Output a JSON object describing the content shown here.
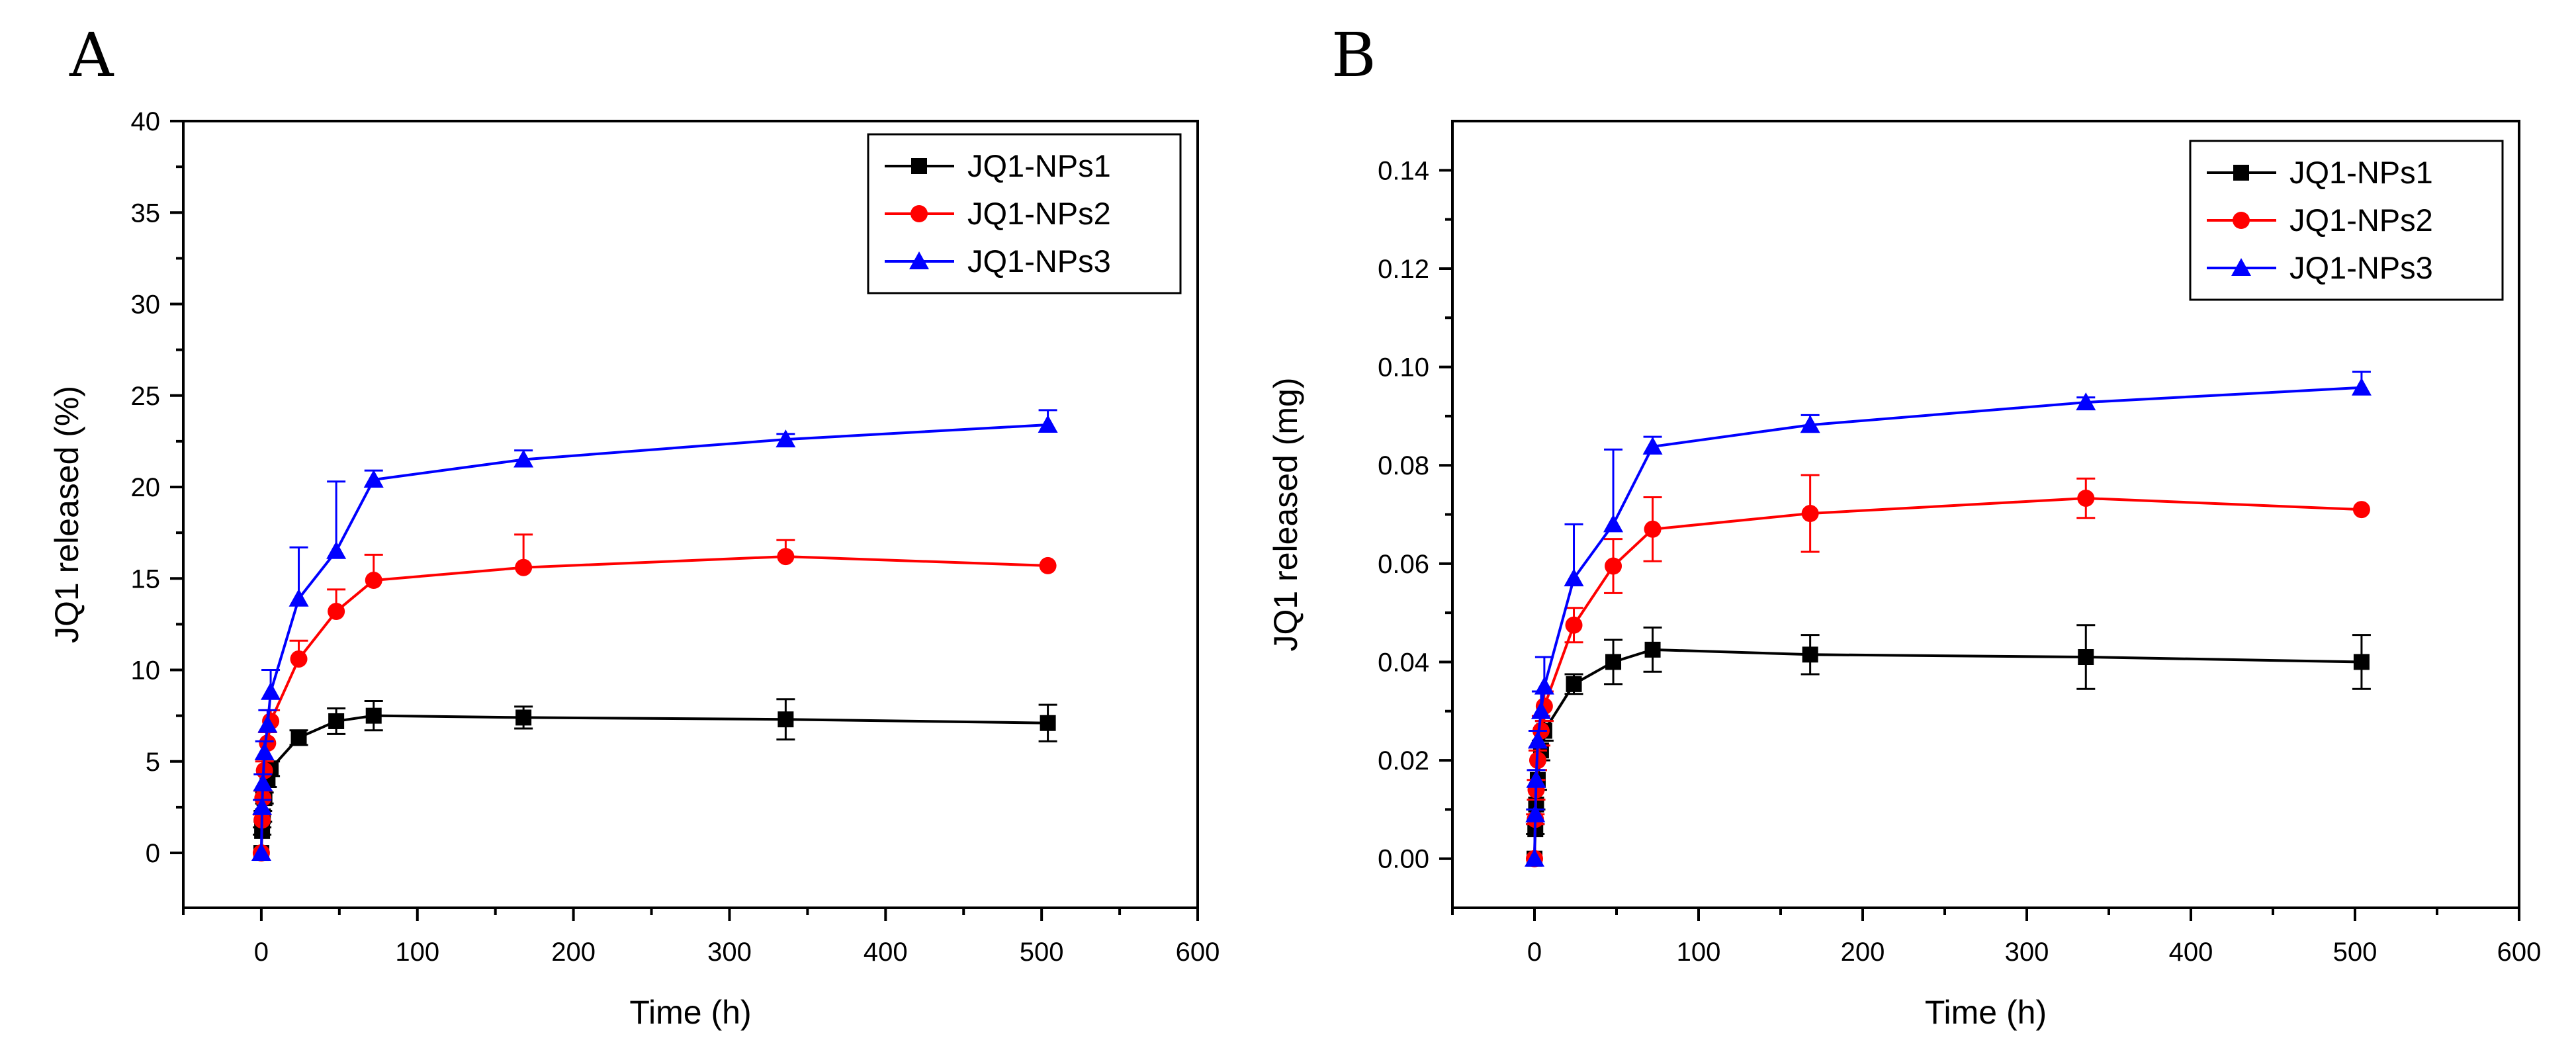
{
  "chart_data": [
    {
      "panel_label": "A",
      "type": "line",
      "xlabel": "Time (h)",
      "ylabel": "JQ1 released (%)",
      "xlim": [
        -50,
        600
      ],
      "ylim": [
        -3,
        40
      ],
      "xticks": [
        0,
        100,
        200,
        300,
        400,
        500,
        600
      ],
      "xtick_labels": [
        "0",
        "100",
        "200",
        "300",
        "400",
        "500",
        "600"
      ],
      "yticks": [
        0,
        5,
        10,
        15,
        20,
        25,
        30,
        35,
        40
      ],
      "ytick_labels": [
        "0",
        "5",
        "10",
        "15",
        "20",
        "25",
        "30",
        "35",
        "40"
      ],
      "legend_position": "top-right",
      "x": [
        0,
        0.5,
        1,
        2,
        4,
        6,
        24,
        48,
        72,
        168,
        336,
        504
      ],
      "series": [
        {
          "name": "JQ1-NPs1",
          "color": "#000000",
          "marker": "square",
          "values": [
            0,
            1.2,
            2.0,
            3.0,
            4.0,
            4.6,
            6.3,
            7.2,
            7.5,
            7.4,
            7.3,
            7.1
          ],
          "errors": [
            0,
            0.2,
            0.3,
            0.3,
            0.4,
            0.4,
            0.4,
            0.7,
            0.8,
            0.6,
            1.1,
            1.0
          ]
        },
        {
          "name": "JQ1-NPs2",
          "color": "#ff0000",
          "marker": "circle",
          "values": [
            0,
            1.8,
            3.0,
            4.5,
            6.0,
            7.2,
            10.6,
            13.2,
            14.9,
            15.6,
            16.2,
            15.7
          ],
          "errors": [
            0,
            0.3,
            0.4,
            0.5,
            0.6,
            0.6,
            1.0,
            1.2,
            1.4,
            1.8,
            0.9,
            0
          ],
          "error_mode": "up"
        },
        {
          "name": "JQ1-NPs3",
          "color": "#0000ff",
          "marker": "triangle",
          "values": [
            0,
            2.5,
            3.8,
            5.5,
            7.0,
            8.8,
            13.9,
            16.5,
            20.4,
            21.5,
            22.6,
            23.4
          ],
          "errors": [
            0,
            0.4,
            0.5,
            0.6,
            0.8,
            1.2,
            2.8,
            3.8,
            0.5,
            0.5,
            0.3,
            0.8
          ],
          "error_mode": "up"
        }
      ]
    },
    {
      "panel_label": "B",
      "type": "line",
      "xlabel": "Time (h)",
      "ylabel": "JQ1 released (mg)",
      "xlim": [
        -50,
        600
      ],
      "ylim": [
        -0.01,
        0.15
      ],
      "xticks": [
        0,
        100,
        200,
        300,
        400,
        500,
        600
      ],
      "xtick_labels": [
        "0",
        "100",
        "200",
        "300",
        "400",
        "500",
        "600"
      ],
      "yticks": [
        0,
        0.02,
        0.04,
        0.06,
        0.08,
        0.1,
        0.12,
        0.14
      ],
      "ytick_labels": [
        "0.00",
        "0.02",
        "0.04",
        "0.06",
        "0.08",
        "0.10",
        "0.12",
        "0.14"
      ],
      "legend_position": "top-right",
      "x": [
        0,
        0.5,
        1,
        2,
        4,
        6,
        24,
        48,
        72,
        168,
        336,
        504
      ],
      "series": [
        {
          "name": "JQ1-NPs1",
          "color": "#000000",
          "marker": "square",
          "values": [
            0,
            0.006,
            0.011,
            0.016,
            0.022,
            0.026,
            0.0355,
            0.04,
            0.0425,
            0.0415,
            0.041,
            0.04
          ],
          "errors": [
            0,
            0.001,
            0.001,
            0.002,
            0.002,
            0.002,
            0.002,
            0.0045,
            0.0045,
            0.004,
            0.0065,
            0.0055
          ]
        },
        {
          "name": "JQ1-NPs2",
          "color": "#ff0000",
          "marker": "circle",
          "values": [
            0,
            0.008,
            0.014,
            0.02,
            0.026,
            0.031,
            0.0475,
            0.0595,
            0.067,
            0.0702,
            0.0733,
            0.071
          ],
          "errors": [
            0,
            0.001,
            0.002,
            0.002,
            0.003,
            0.003,
            0.0035,
            0.0055,
            0.0065,
            0.0078,
            0.004,
            0
          ],
          "error_mode": "both"
        },
        {
          "name": "JQ1-NPs3",
          "color": "#0000ff",
          "marker": "triangle",
          "values": [
            0,
            0.009,
            0.016,
            0.024,
            0.03,
            0.035,
            0.057,
            0.068,
            0.0838,
            0.0882,
            0.0928,
            0.0958
          ],
          "errors": [
            0,
            0.001,
            0.002,
            0.002,
            0.004,
            0.006,
            0.011,
            0.0152,
            0.002,
            0.002,
            0.001,
            0.0032
          ],
          "error_mode": "up"
        }
      ]
    }
  ]
}
